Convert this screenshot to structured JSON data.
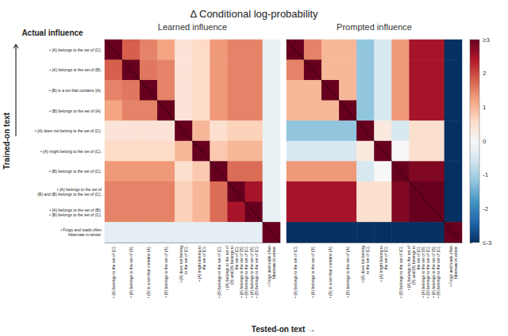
{
  "chart_data": {
    "type": "heatmap",
    "title": "Δ Conditional log-probability",
    "x_label": "Tested-on text →",
    "y_label": "Trained-on text",
    "annotations": [
      "Actual influence"
    ],
    "row_labels": [
      "• {A} belongs to the set of {C}.",
      "• {A} belongs to the set of {B}.",
      "• {B} is a set that contains {A}.",
      "• {B} belongs to the set of {A}.",
      "• {A} does not belong to the set of {C}.",
      "• {A} might belong to the set of {C}.",
      "• {B} belongs to the set of {C}.",
      "• {A} belongs to the set of\n  {B} and {B} belongs to the set of {C}.",
      "• {A} belongs to the set of {B}.\n  • {B} belongs to the set of {C}.",
      "• Frogs and toads often\n  hibernate in winter."
    ],
    "col_labels": [
      "• {A} belongs to the set of {C}.",
      "• {A} belongs to the set of {B}.",
      "• {B} is a set that contains {A}.",
      "• {B} belongs to the set of {A}.",
      "• {A} does not belong\n  to the set of {C}.",
      "• {A} might belong to\n  the set of {C}.",
      "• {B} belongs to the set of {C}.",
      "• {A} belongs to the set of\n  {B} and {B} belongs to\n  the set of {C}.\n• {A} belongs to the set of {B}.\n• {B} belongs to the set of {C}.",
      "• {A} belongs to the set of {B}.\n  • {B} belongs to the set of {C}.",
      "• Frogs and toads often\n  hibernate in winter."
    ],
    "series": [
      {
        "name": "Learned influence",
        "values": [
          [
            3.0,
            1.8,
            1.5,
            1.2,
            0.4,
            0.6,
            1.3,
            1.5,
            1.5,
            -0.2
          ],
          [
            1.8,
            3.0,
            1.6,
            1.5,
            0.4,
            0.6,
            1.3,
            1.5,
            1.5,
            -0.2
          ],
          [
            1.5,
            1.6,
            3.0,
            1.5,
            0.4,
            0.6,
            1.3,
            1.5,
            1.5,
            -0.2
          ],
          [
            1.2,
            1.5,
            1.5,
            3.0,
            0.4,
            0.6,
            1.3,
            1.5,
            1.5,
            -0.2
          ],
          [
            0.4,
            0.4,
            0.4,
            0.4,
            3.0,
            1.0,
            0.5,
            0.7,
            0.7,
            -0.2
          ],
          [
            0.6,
            0.6,
            0.6,
            0.6,
            1.0,
            3.0,
            0.8,
            1.0,
            1.0,
            -0.2
          ],
          [
            1.3,
            1.3,
            1.3,
            1.3,
            0.5,
            0.8,
            3.0,
            1.7,
            1.7,
            -0.2
          ],
          [
            1.5,
            1.5,
            1.5,
            1.5,
            0.7,
            1.0,
            1.7,
            3.0,
            2.5,
            -0.2
          ],
          [
            1.5,
            1.5,
            1.5,
            1.5,
            0.7,
            1.0,
            1.7,
            2.5,
            3.0,
            -0.2
          ],
          [
            -0.3,
            -0.3,
            -0.3,
            -0.3,
            -0.3,
            -0.3,
            -0.3,
            -0.3,
            -0.3,
            3.0
          ]
        ]
      },
      {
        "name": "Prompted influence",
        "values": [
          [
            3.0,
            1.5,
            1.0,
            1.0,
            -1.2,
            -0.5,
            1.3,
            2.5,
            2.5,
            -3.0
          ],
          [
            1.5,
            3.0,
            1.0,
            1.0,
            -1.2,
            -0.5,
            1.3,
            2.5,
            2.5,
            -3.0
          ],
          [
            1.0,
            1.0,
            3.0,
            1.0,
            -1.2,
            -0.5,
            1.3,
            2.5,
            2.5,
            -3.0
          ],
          [
            1.0,
            1.0,
            1.0,
            3.0,
            -1.2,
            -0.5,
            1.3,
            2.5,
            2.5,
            -3.0
          ],
          [
            -1.2,
            -1.2,
            -1.2,
            -1.2,
            3.0,
            0.3,
            -0.5,
            0.5,
            0.5,
            -3.0
          ],
          [
            -0.5,
            -0.5,
            -0.5,
            -0.5,
            0.3,
            3.0,
            0.0,
            0.5,
            0.5,
            -3.0
          ],
          [
            1.3,
            1.3,
            1.3,
            1.3,
            -0.5,
            0.0,
            3.0,
            2.8,
            2.8,
            -3.0
          ],
          [
            2.5,
            2.5,
            2.5,
            2.5,
            0.5,
            0.5,
            2.8,
            3.0,
            3.0,
            -3.0
          ],
          [
            2.5,
            2.5,
            2.5,
            2.5,
            0.5,
            0.5,
            2.8,
            3.0,
            3.0,
            -3.0
          ],
          [
            -3.0,
            -3.0,
            -3.0,
            -3.0,
            -3.0,
            -3.0,
            -3.0,
            -3.0,
            -3.0,
            3.0
          ]
        ]
      }
    ],
    "color_range": [
      -3,
      3
    ],
    "color_ticks": [
      {
        "value": 3,
        "label": "≥3"
      },
      2,
      1,
      0,
      -1,
      -2,
      {
        "value": -3,
        "label": "≤-3"
      }
    ],
    "grid": false
  }
}
